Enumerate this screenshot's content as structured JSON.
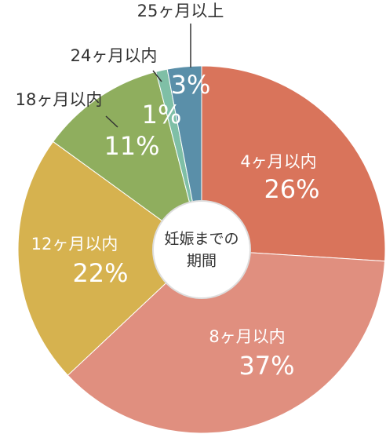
{
  "chart_data": {
    "type": "pie",
    "categories": [
      "4ヶ月以内",
      "8ヶ月以内",
      "12ヶ月以内",
      "18ヶ月以内",
      "24ヶ月以内",
      "25ヶ月以上"
    ],
    "values": [
      26,
      37,
      22,
      11,
      1,
      3
    ],
    "value_labels": [
      "26%",
      "37%",
      "22%",
      "11%",
      "1%",
      "3%"
    ],
    "colors": [
      "#d9745b",
      "#e08f7f",
      "#d6b24f",
      "#8fae5e",
      "#7fbfa6",
      "#5a8fa9"
    ],
    "center_label": [
      "妊娠までの",
      "期間"
    ]
  }
}
